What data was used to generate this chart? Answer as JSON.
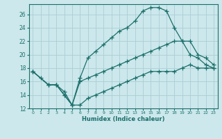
{
  "xlabel": "Humidex (Indice chaleur)",
  "bg_color": "#cce8ec",
  "line_color": "#1a6e6a",
  "grid_color": "#aacdd4",
  "xlim": [
    -0.5,
    23.5
  ],
  "ylim": [
    12,
    27.5
  ],
  "xticks": [
    0,
    1,
    2,
    3,
    4,
    5,
    6,
    7,
    8,
    9,
    10,
    11,
    12,
    13,
    14,
    15,
    16,
    17,
    18,
    19,
    20,
    21,
    22,
    23
  ],
  "yticks": [
    12,
    14,
    16,
    18,
    20,
    22,
    24,
    26
  ],
  "line1_x": [
    0,
    1,
    2,
    3,
    4,
    5,
    6,
    7,
    8,
    9,
    10,
    11,
    12,
    13,
    14,
    15,
    16,
    17,
    18,
    19,
    20,
    21,
    22,
    23
  ],
  "line1_y": [
    17.5,
    16.5,
    15.5,
    15.5,
    14.5,
    12.5,
    16.5,
    19.5,
    20.5,
    21.5,
    22.5,
    23.5,
    24.0,
    25.0,
    26.5,
    27.0,
    27.0,
    26.5,
    24.0,
    22.0,
    20.0,
    19.5,
    18.5,
    18.0
  ],
  "line2_x": [
    0,
    2,
    3,
    4,
    5,
    6,
    7,
    8,
    9,
    10,
    11,
    12,
    13,
    14,
    15,
    16,
    17,
    18,
    19,
    20,
    21,
    22,
    23
  ],
  "line2_y": [
    17.5,
    15.5,
    15.5,
    14.0,
    12.5,
    16.0,
    16.5,
    17.0,
    17.5,
    18.0,
    18.5,
    19.0,
    19.5,
    20.0,
    20.5,
    21.0,
    21.5,
    22.0,
    22.0,
    22.0,
    20.0,
    19.5,
    18.5
  ],
  "line3_x": [
    0,
    2,
    3,
    4,
    5,
    6,
    7,
    8,
    9,
    10,
    11,
    12,
    13,
    14,
    15,
    16,
    17,
    18,
    19,
    20,
    21,
    22,
    23
  ],
  "line3_y": [
    17.5,
    15.5,
    15.5,
    14.0,
    12.5,
    12.5,
    13.5,
    14.0,
    14.5,
    15.0,
    15.5,
    16.0,
    16.5,
    17.0,
    17.5,
    17.5,
    17.5,
    17.5,
    18.0,
    18.5,
    18.0,
    18.0,
    18.0
  ]
}
